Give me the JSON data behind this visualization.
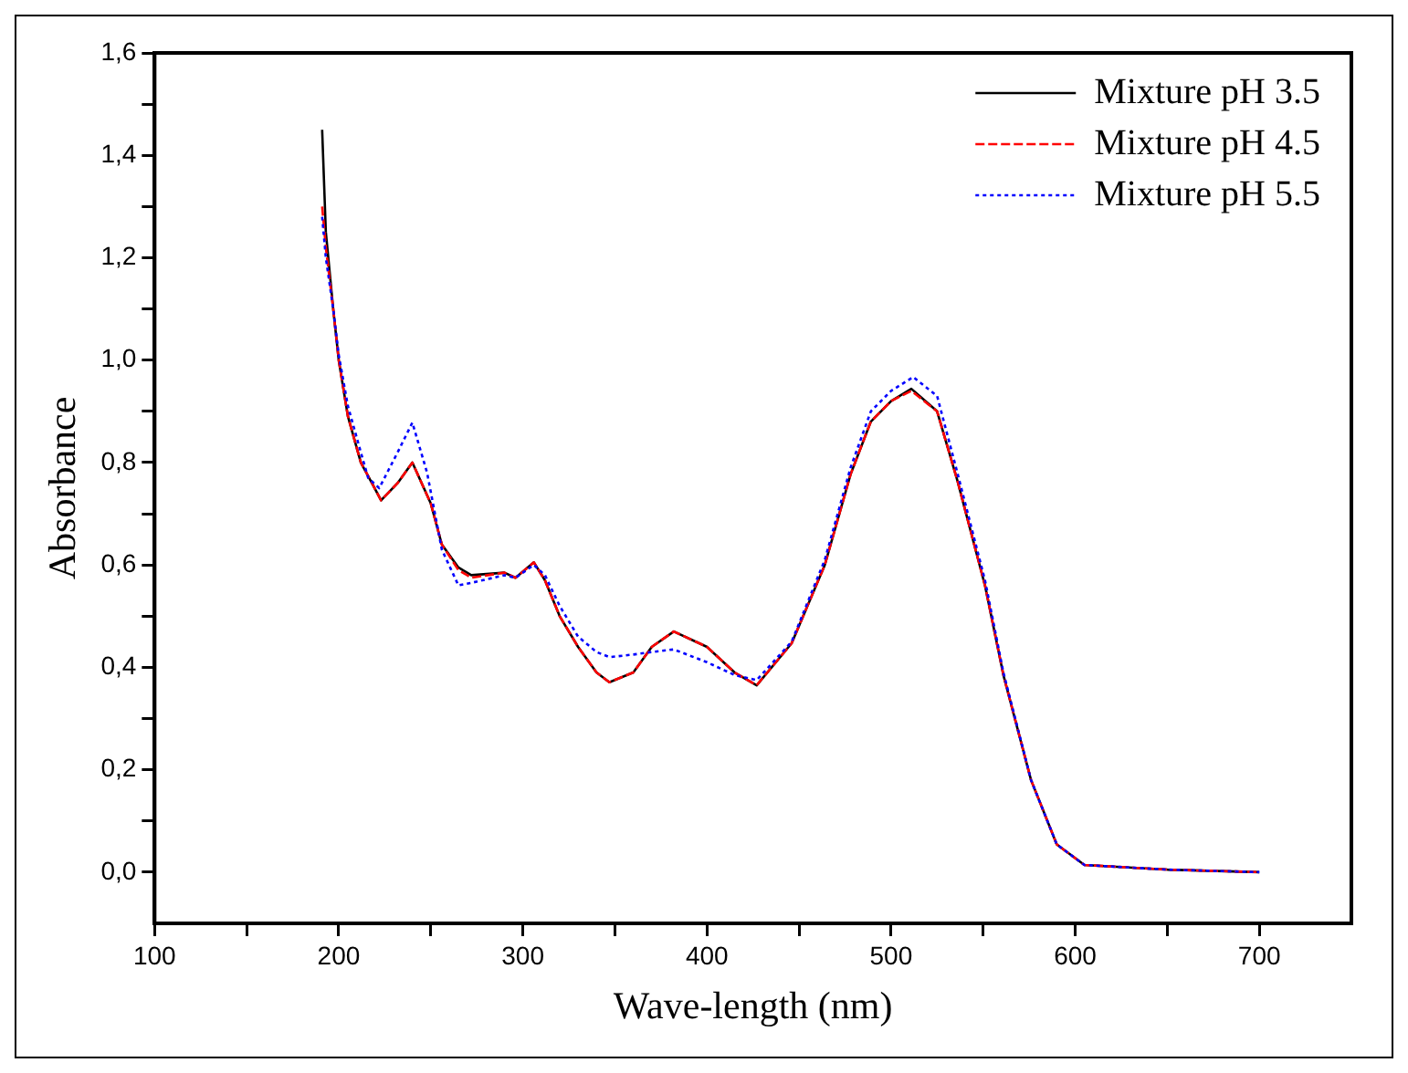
{
  "chart_data": {
    "type": "line",
    "xlabel": "Wave-length (nm)",
    "ylabel": "Absorbance",
    "xlim": [
      100,
      750
    ],
    "xticks": [
      100,
      {
        "value": 150,
        "label": null
      },
      200,
      {
        "value": 250,
        "label": null
      },
      300,
      {
        "value": 350,
        "label": null
      },
      400,
      {
        "value": 450,
        "label": null
      },
      500,
      {
        "value": 550,
        "label": null
      },
      600,
      {
        "value": 650,
        "label": null
      },
      700
    ],
    "ylim": [
      -0.1,
      1.6
    ],
    "yticks": [
      {
        "value": 0,
        "label": "0,0"
      },
      {
        "value": 0.1,
        "label": null
      },
      {
        "value": 0.2,
        "label": "0,2"
      },
      {
        "value": 0.3,
        "label": null
      },
      {
        "value": 0.4,
        "label": "0,4"
      },
      {
        "value": 0.5,
        "label": null
      },
      {
        "value": 0.6,
        "label": "0,6"
      },
      {
        "value": 0.7,
        "label": null
      },
      {
        "value": 0.8,
        "label": "0,8"
      },
      {
        "value": 0.9,
        "label": null
      },
      {
        "value": 1.0,
        "label": "1,0"
      },
      {
        "value": 1.1,
        "label": null
      },
      {
        "value": 1.2,
        "label": "1,2"
      },
      {
        "value": 1.3,
        "label": null
      },
      {
        "value": 1.4,
        "label": "1,4"
      },
      {
        "value": 1.5,
        "label": null
      },
      {
        "value": 1.6,
        "label": "1,6"
      }
    ],
    "grid": false,
    "legend": "top right",
    "series": [
      {
        "name": "Mixture pH 3.5",
        "color": "#000000",
        "line_style": "solid",
        "x": [
          191,
          193,
          197,
          200,
          205,
          212,
          218,
          223,
          232,
          240,
          250,
          256,
          265,
          272,
          290,
          296,
          306,
          312,
          320,
          330,
          340,
          347,
          360,
          370,
          382,
          400,
          415,
          427,
          446,
          464,
          478,
          489,
          500,
          511,
          525,
          536,
          551,
          561,
          576,
          590,
          605,
          650,
          700
        ],
        "values": [
          1.45,
          1.25,
          1.1,
          1.0,
          0.89,
          0.8,
          0.76,
          0.726,
          0.76,
          0.8,
          0.72,
          0.64,
          0.595,
          0.58,
          0.585,
          0.575,
          0.605,
          0.57,
          0.5,
          0.44,
          0.39,
          0.371,
          0.39,
          0.44,
          0.47,
          0.44,
          0.39,
          0.365,
          0.447,
          0.6,
          0.777,
          0.88,
          0.92,
          0.944,
          0.9,
          0.765,
          0.56,
          0.385,
          0.18,
          0.054,
          0.014,
          0.005,
          0.0
        ]
      },
      {
        "name": "Mixture pH 4.5",
        "color": "#ff0000",
        "line_style": "dashed",
        "x": [
          191,
          193,
          197,
          200,
          205,
          212,
          218,
          223,
          232,
          240,
          250,
          256,
          265,
          272,
          290,
          296,
          306,
          312,
          320,
          330,
          340,
          347,
          360,
          370,
          382,
          400,
          415,
          427,
          446,
          464,
          478,
          489,
          500,
          511,
          525,
          536,
          551,
          561,
          576,
          590,
          605,
          650,
          700
        ],
        "values": [
          1.3,
          1.22,
          1.1,
          1.0,
          0.89,
          0.8,
          0.76,
          0.726,
          0.76,
          0.8,
          0.72,
          0.64,
          0.59,
          0.575,
          0.585,
          0.575,
          0.605,
          0.57,
          0.5,
          0.44,
          0.39,
          0.371,
          0.39,
          0.44,
          0.47,
          0.44,
          0.39,
          0.365,
          0.447,
          0.6,
          0.777,
          0.88,
          0.92,
          0.94,
          0.9,
          0.765,
          0.56,
          0.385,
          0.18,
          0.054,
          0.014,
          0.005,
          0.0
        ]
      },
      {
        "name": "Mixture pH 5.5",
        "color": "#0000ff",
        "line_style": "dotted",
        "x": [
          191,
          193,
          197,
          200,
          205,
          212,
          216,
          222,
          232,
          240,
          248,
          256,
          265,
          272,
          290,
          296,
          306,
          312,
          320,
          330,
          340,
          347,
          360,
          370,
          382,
          400,
          415,
          427,
          446,
          464,
          478,
          489,
          500,
          512,
          525,
          536,
          551,
          561,
          576,
          590,
          605,
          650,
          700
        ],
        "values": [
          1.28,
          1.2,
          1.1,
          1.01,
          0.91,
          0.82,
          0.77,
          0.75,
          0.82,
          0.878,
          0.78,
          0.63,
          0.56,
          0.565,
          0.58,
          0.575,
          0.6,
          0.58,
          0.52,
          0.46,
          0.43,
          0.42,
          0.425,
          0.43,
          0.435,
          0.41,
          0.385,
          0.375,
          0.45,
          0.61,
          0.79,
          0.9,
          0.94,
          0.967,
          0.93,
          0.78,
          0.57,
          0.39,
          0.18,
          0.054,
          0.014,
          0.005,
          0.0
        ]
      }
    ]
  }
}
